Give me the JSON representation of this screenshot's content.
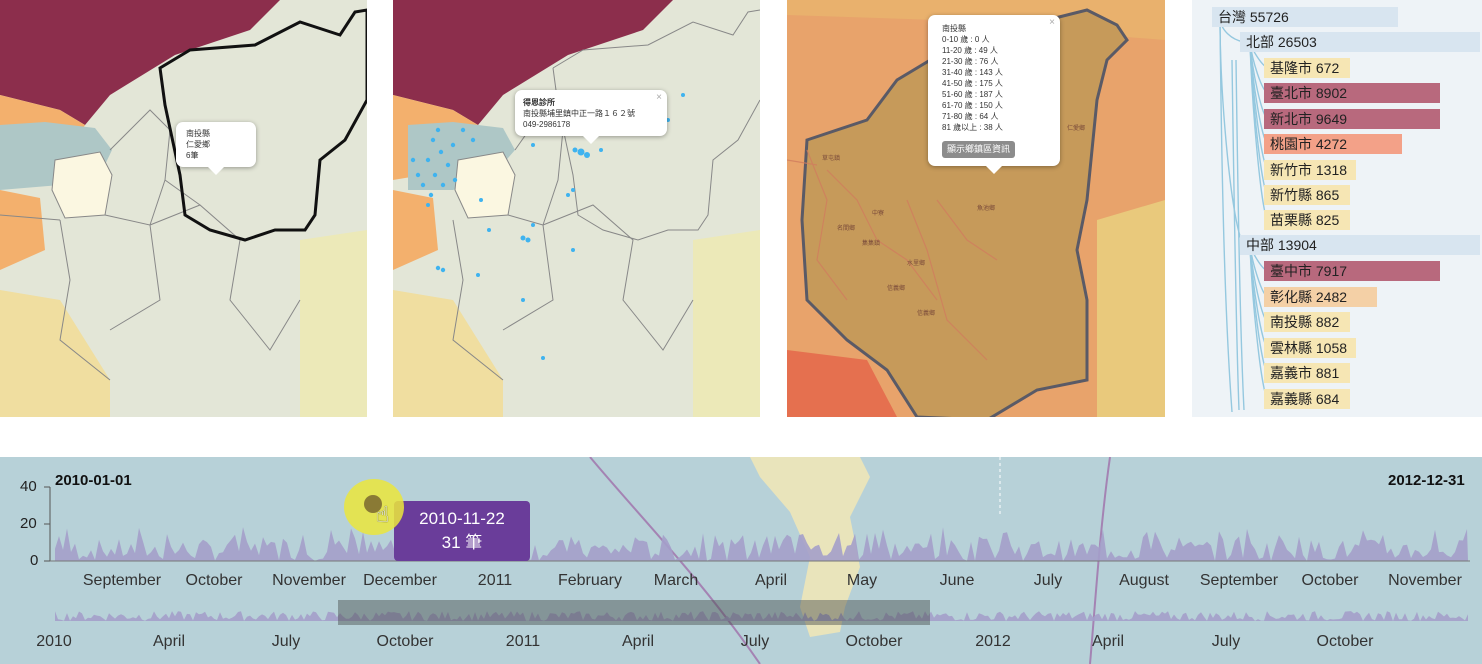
{
  "map1": {
    "popup": {
      "lines": [
        "南投縣",
        "仁愛鄉",
        "6筆"
      ]
    }
  },
  "map2": {
    "popup": {
      "name": "得恩診所",
      "address": "南投縣埔里鎮中正一路１６２號",
      "phone": "049-2986178",
      "close": "×"
    }
  },
  "map3": {
    "popup": {
      "title": "南投縣",
      "rows": [
        "0-10 歲 : 0 人",
        "11-20 歲 : 49 人",
        "21-30 歲 : 76 人",
        "31-40 歲 : 143 人",
        "41-50 歲 : 175 人",
        "51-60 歲 : 187 人",
        "61-70 歲 : 150 人",
        "71-80 歲 : 64 人",
        "81 歲以上 : 38 人"
      ],
      "button": "顯示鄉鎮區資訊",
      "close": "×"
    }
  },
  "tree": {
    "root": {
      "label": "台灣 55726"
    },
    "regions": [
      {
        "label": "北部 26503",
        "items": [
          {
            "label": "基隆市 672",
            "color": "#f6e6b4"
          },
          {
            "label": "臺北市 8902",
            "color": "#b8697d"
          },
          {
            "label": "新北市 9649",
            "color": "#b8697d"
          },
          {
            "label": "桃園市 4272",
            "color": "#f3a188"
          },
          {
            "label": "新竹市 1318",
            "color": "#f6e6b4"
          },
          {
            "label": "新竹縣 865",
            "color": "#f6e6b4"
          },
          {
            "label": "苗栗縣 825",
            "color": "#f6e6b4"
          }
        ]
      },
      {
        "label": "中部 13904",
        "items": [
          {
            "label": "臺中市 7917",
            "color": "#b8697d"
          },
          {
            "label": "彰化縣 2482",
            "color": "#f4d0a6"
          },
          {
            "label": "南投縣 882",
            "color": "#f6e6b4"
          },
          {
            "label": "雲林縣 1058",
            "color": "#f6e6b4"
          },
          {
            "label": "嘉義市 881",
            "color": "#f6e6b4"
          },
          {
            "label": "嘉義縣 684",
            "color": "#f6e6b4"
          }
        ]
      }
    ]
  },
  "timeline": {
    "start_date": "2010-01-01",
    "end_date": "2012-12-31",
    "y_ticks": [
      "40",
      "20",
      "0"
    ],
    "top_axis_ticks": [
      "September",
      "October",
      "November",
      "December",
      "2011",
      "February",
      "March",
      "April",
      "May",
      "June",
      "July",
      "August",
      "September",
      "October",
      "November"
    ],
    "bottom_axis_ticks": [
      "2010",
      "April",
      "July",
      "October",
      "2011",
      "April",
      "July",
      "October",
      "2012",
      "April",
      "July",
      "October"
    ],
    "tooltip": {
      "date": "2010-11-22",
      "count": "31 筆"
    },
    "area_color": "#a49fca"
  }
}
